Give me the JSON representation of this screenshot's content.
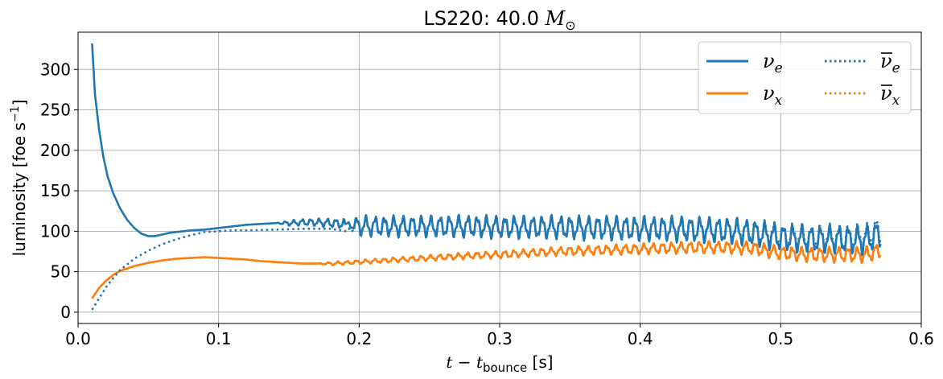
{
  "chart_data": {
    "type": "line",
    "title": "LS220: 40.0 M⊙",
    "xlabel": "t − t_bounce [s]",
    "ylabel": "luminosity [foe s⁻¹]",
    "xlim": [
      0,
      0.6
    ],
    "ylim": [
      -14,
      346
    ],
    "xticks": [
      0,
      0.1,
      0.2,
      0.3,
      0.4,
      0.5,
      0.6
    ],
    "xtick_labels": [
      "0.0",
      "0.1",
      "0.2",
      "0.3",
      "0.4",
      "0.5",
      "0.6"
    ],
    "yticks": [
      0,
      50,
      100,
      150,
      200,
      250,
      300
    ],
    "ytick_labels": [
      "0",
      "50",
      "100",
      "150",
      "200",
      "250",
      "300"
    ],
    "grid": true,
    "legend_position": "top-right",
    "series": [
      {
        "name": "ν_e",
        "color": "#1f77b4",
        "style": "solid",
        "points": [
          [
            0.01,
            332
          ],
          [
            0.012,
            270
          ],
          [
            0.015,
            225
          ],
          [
            0.018,
            192
          ],
          [
            0.021,
            168
          ],
          [
            0.025,
            147
          ],
          [
            0.03,
            128
          ],
          [
            0.035,
            114
          ],
          [
            0.04,
            104
          ],
          [
            0.045,
            97
          ],
          [
            0.05,
            94
          ],
          [
            0.055,
            94
          ],
          [
            0.06,
            96
          ],
          [
            0.065,
            98
          ],
          [
            0.07,
            99
          ],
          [
            0.08,
            101
          ],
          [
            0.09,
            102
          ],
          [
            0.1,
            104
          ],
          [
            0.11,
            106
          ],
          [
            0.12,
            108
          ],
          [
            0.13,
            109
          ],
          [
            0.14,
            110
          ],
          [
            0.15,
            110
          ],
          [
            0.16,
            111
          ],
          [
            0.17,
            111
          ],
          [
            0.18,
            110
          ],
          [
            0.19,
            109
          ],
          [
            0.2,
            107
          ],
          [
            0.21,
            106
          ],
          [
            0.22,
            106
          ],
          [
            0.24,
            106
          ],
          [
            0.26,
            106
          ],
          [
            0.28,
            106
          ],
          [
            0.3,
            105
          ],
          [
            0.32,
            105
          ],
          [
            0.34,
            105
          ],
          [
            0.36,
            104
          ],
          [
            0.38,
            104
          ],
          [
            0.4,
            103
          ],
          [
            0.42,
            103
          ],
          [
            0.44,
            102
          ],
          [
            0.46,
            101
          ],
          [
            0.48,
            98
          ],
          [
            0.5,
            92
          ],
          [
            0.52,
            90
          ],
          [
            0.54,
            90
          ],
          [
            0.56,
            89
          ],
          [
            0.571,
            97
          ]
        ]
      },
      {
        "name": "ν_x",
        "color": "#ff7f0e",
        "style": "solid",
        "points": [
          [
            0.01,
            17
          ],
          [
            0.015,
            30
          ],
          [
            0.02,
            39
          ],
          [
            0.025,
            46
          ],
          [
            0.03,
            51
          ],
          [
            0.04,
            57
          ],
          [
            0.05,
            61
          ],
          [
            0.06,
            64
          ],
          [
            0.07,
            66
          ],
          [
            0.08,
            67
          ],
          [
            0.09,
            68
          ],
          [
            0.1,
            67
          ],
          [
            0.11,
            66
          ],
          [
            0.12,
            65
          ],
          [
            0.13,
            63
          ],
          [
            0.14,
            62
          ],
          [
            0.15,
            61
          ],
          [
            0.16,
            60
          ],
          [
            0.17,
            60
          ],
          [
            0.18,
            60
          ],
          [
            0.19,
            61
          ],
          [
            0.2,
            62
          ],
          [
            0.22,
            64
          ],
          [
            0.24,
            66
          ],
          [
            0.26,
            68
          ],
          [
            0.28,
            70
          ],
          [
            0.3,
            71
          ],
          [
            0.32,
            73
          ],
          [
            0.34,
            75
          ],
          [
            0.36,
            76
          ],
          [
            0.38,
            77
          ],
          [
            0.4,
            78
          ],
          [
            0.42,
            79
          ],
          [
            0.44,
            80
          ],
          [
            0.46,
            80
          ],
          [
            0.48,
            79
          ],
          [
            0.5,
            73
          ],
          [
            0.52,
            71
          ],
          [
            0.54,
            71
          ],
          [
            0.56,
            71
          ],
          [
            0.571,
            76
          ]
        ]
      },
      {
        "name": "ν̅_e",
        "color": "#1f77b4",
        "style": "dotted",
        "points": [
          [
            0.01,
            3
          ],
          [
            0.015,
            17
          ],
          [
            0.02,
            31
          ],
          [
            0.025,
            42
          ],
          [
            0.03,
            52
          ],
          [
            0.04,
            66
          ],
          [
            0.05,
            76
          ],
          [
            0.06,
            84
          ],
          [
            0.07,
            90
          ],
          [
            0.08,
            95
          ],
          [
            0.09,
            99
          ],
          [
            0.1,
            100
          ],
          [
            0.11,
            101
          ],
          [
            0.12,
            101
          ],
          [
            0.14,
            102
          ],
          [
            0.16,
            103
          ],
          [
            0.18,
            103
          ],
          [
            0.19,
            100
          ],
          [
            0.2,
            106
          ],
          [
            0.22,
            106
          ],
          [
            0.24,
            106
          ],
          [
            0.26,
            106
          ],
          [
            0.28,
            106
          ],
          [
            0.3,
            105
          ],
          [
            0.32,
            105
          ],
          [
            0.34,
            105
          ],
          [
            0.36,
            104
          ],
          [
            0.38,
            104
          ],
          [
            0.4,
            104
          ],
          [
            0.42,
            103
          ],
          [
            0.44,
            103
          ],
          [
            0.46,
            102
          ],
          [
            0.48,
            100
          ],
          [
            0.5,
            95
          ],
          [
            0.52,
            93
          ],
          [
            0.54,
            93
          ],
          [
            0.56,
            93
          ],
          [
            0.571,
            102
          ]
        ]
      },
      {
        "name": "ν̅_x",
        "color": "#ff7f0e",
        "style": "dotted",
        "points": [
          [
            0.01,
            17
          ],
          [
            0.015,
            30
          ],
          [
            0.02,
            39
          ],
          [
            0.025,
            46
          ],
          [
            0.03,
            51
          ],
          [
            0.04,
            57
          ],
          [
            0.05,
            61
          ],
          [
            0.06,
            64
          ],
          [
            0.07,
            66
          ],
          [
            0.08,
            67
          ],
          [
            0.09,
            68
          ],
          [
            0.1,
            67
          ],
          [
            0.11,
            66
          ],
          [
            0.12,
            65
          ],
          [
            0.13,
            63
          ],
          [
            0.14,
            62
          ],
          [
            0.15,
            61
          ],
          [
            0.16,
            60
          ],
          [
            0.17,
            60
          ],
          [
            0.18,
            60
          ],
          [
            0.19,
            61
          ],
          [
            0.2,
            62
          ],
          [
            0.22,
            64
          ],
          [
            0.24,
            66
          ],
          [
            0.26,
            68
          ],
          [
            0.28,
            70
          ],
          [
            0.3,
            71
          ],
          [
            0.32,
            73
          ],
          [
            0.34,
            75
          ],
          [
            0.36,
            76
          ],
          [
            0.38,
            77
          ],
          [
            0.4,
            78
          ],
          [
            0.42,
            79
          ],
          [
            0.44,
            80
          ],
          [
            0.46,
            80
          ],
          [
            0.48,
            79
          ],
          [
            0.5,
            73
          ],
          [
            0.52,
            71
          ],
          [
            0.54,
            71
          ],
          [
            0.56,
            71
          ],
          [
            0.571,
            76
          ]
        ]
      }
    ],
    "oscillations": [
      {
        "series_index": 0,
        "start": 0.14,
        "end": 0.19,
        "period": 0.006,
        "amp_start": 2,
        "amp_end": 5
      },
      {
        "series_index": 0,
        "start": 0.19,
        "end": 0.571,
        "period": 0.0066,
        "amp_start": 10,
        "amp_end": 14
      },
      {
        "series_index": 2,
        "start": 0.19,
        "end": 0.571,
        "period": 0.0066,
        "amp_start": 8,
        "amp_end": 13
      },
      {
        "series_index": 1,
        "start": 0.17,
        "end": 0.571,
        "period": 0.0066,
        "amp_start": 1.5,
        "amp_end": 8
      },
      {
        "series_index": 3,
        "start": 0.17,
        "end": 0.571,
        "period": 0.0066,
        "amp_start": 1.5,
        "amp_end": 8
      }
    ]
  }
}
